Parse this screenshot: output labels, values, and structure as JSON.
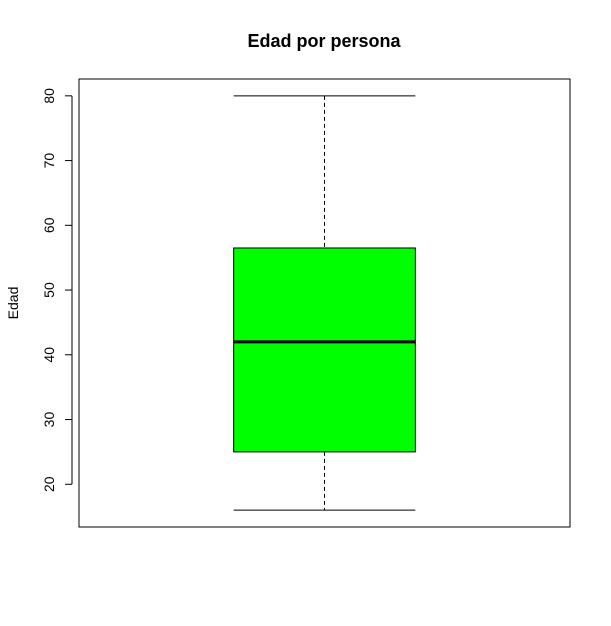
{
  "chart_data": {
    "type": "box",
    "title": "Edad por persona",
    "xlabel": "",
    "ylabel": "Edad",
    "ylim": [
      13.4,
      82.6
    ],
    "yticks": [
      20,
      30,
      40,
      50,
      60,
      70,
      80
    ],
    "series": [
      {
        "min": 16,
        "q1": 25,
        "median": 42,
        "q3": 56.5,
        "max": 80
      }
    ],
    "box_color": "#00ff00",
    "grid": false,
    "legend": "none"
  }
}
